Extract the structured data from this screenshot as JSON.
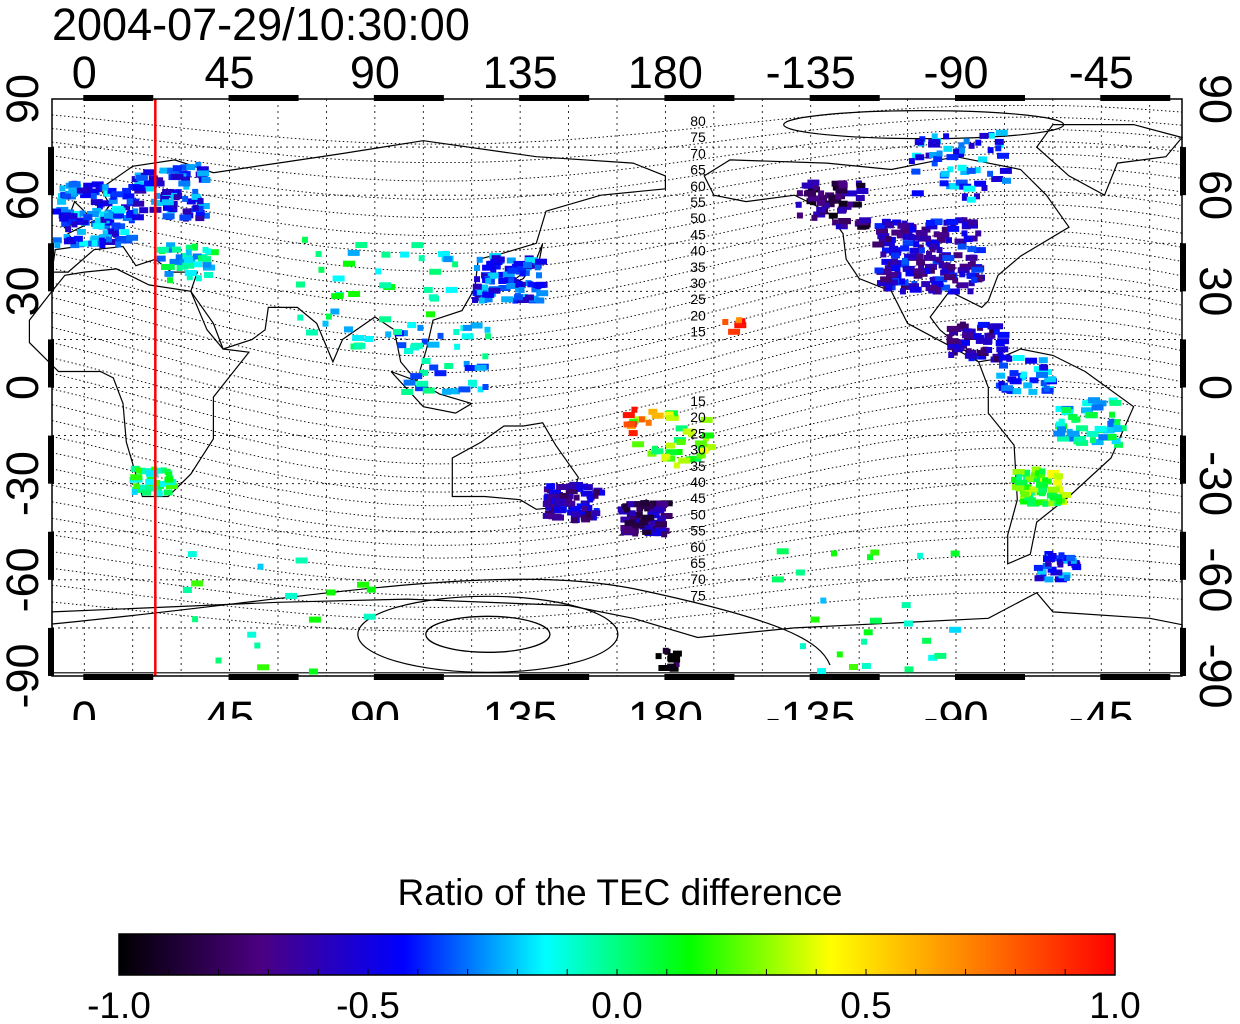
{
  "map": {
    "title": "2004-07-29/10:30:00",
    "lon_ticks": [
      {
        "label": "0",
        "lon": 0
      },
      {
        "label": "45",
        "lon": 45
      },
      {
        "label": "90",
        "lon": 90
      },
      {
        "label": "135",
        "lon": 135
      },
      {
        "label": "180",
        "lon": 180
      },
      {
        "label": "-135",
        "lon": 225
      },
      {
        "label": "-90",
        "lon": 270
      },
      {
        "label": "-45",
        "lon": 315
      }
    ],
    "lat_ticks": [
      {
        "label": "90",
        "lat": 90
      },
      {
        "label": "60",
        "lat": 60
      },
      {
        "label": "30",
        "lat": 30
      },
      {
        "label": "0",
        "lat": 0
      },
      {
        "label": "-30",
        "lat": -30
      },
      {
        "label": "-60",
        "lat": -60
      },
      {
        "label": "-90",
        "lat": -90
      }
    ],
    "lon_range": [
      -10,
      340
    ],
    "lat_range": [
      -90,
      90
    ],
    "grid_lon_step": 15,
    "grid_lat_step": 15,
    "terminator_lon": 22,
    "terminator_color": "#ff0000",
    "north_contour_labels": [
      "80",
      "75",
      "70",
      "65",
      "60",
      "55",
      "50",
      "45",
      "40",
      "35",
      "30",
      "25",
      "20",
      "15"
    ],
    "south_contour_labels": [
      "15",
      "20",
      "25",
      "30",
      "35",
      "40",
      "45",
      "50",
      "55",
      "60",
      "65",
      "70",
      "75"
    ]
  },
  "colorbar": {
    "title": "Ratio of the TEC difference",
    "min": -1.0,
    "max": 1.0,
    "tick_labels": [
      "-1.0",
      "-0.5",
      "0.0",
      "0.5",
      "1.0"
    ],
    "stops": [
      "#000000",
      "#4b0082",
      "#0000ff",
      "#00ffff",
      "#00ff00",
      "#ffff00",
      "#ff8000",
      "#ff0000"
    ]
  },
  "tec_clusters": [
    {
      "lon": 0,
      "lat": 55,
      "r": 14,
      "v": -0.35,
      "n": 140
    },
    {
      "lon": 25,
      "lat": 62,
      "r": 12,
      "v": -0.4,
      "n": 90
    },
    {
      "lon": 30,
      "lat": 40,
      "r": 8,
      "v": -0.1,
      "n": 40
    },
    {
      "lon": 20,
      "lat": -28,
      "r": 6,
      "v": 0.0,
      "n": 35
    },
    {
      "lon": 130,
      "lat": 35,
      "r": 10,
      "v": -0.4,
      "n": 90
    },
    {
      "lon": 110,
      "lat": 10,
      "r": 15,
      "v": -0.2,
      "n": 40
    },
    {
      "lon": 90,
      "lat": 30,
      "r": 25,
      "v": -0.05,
      "n": 45
    },
    {
      "lon": 150,
      "lat": -35,
      "r": 8,
      "v": -0.6,
      "n": 70
    },
    {
      "lon": 172,
      "lat": -40,
      "r": 7,
      "v": -0.7,
      "n": 60
    },
    {
      "lon": 180,
      "lat": -15,
      "r": 12,
      "v": 0.2,
      "n": 35
    },
    {
      "lon": 170,
      "lat": -10,
      "r": 6,
      "v": 0.8,
      "n": 10
    },
    {
      "lon": 230,
      "lat": 58,
      "r": 10,
      "v": -0.75,
      "n": 60
    },
    {
      "lon": 260,
      "lat": 42,
      "r": 16,
      "v": -0.55,
      "n": 180
    },
    {
      "lon": 270,
      "lat": 70,
      "r": 15,
      "v": -0.35,
      "n": 60
    },
    {
      "lon": 275,
      "lat": 15,
      "r": 8,
      "v": -0.6,
      "n": 60
    },
    {
      "lon": 290,
      "lat": 5,
      "r": 8,
      "v": -0.3,
      "n": 35
    },
    {
      "lon": 295,
      "lat": -30,
      "r": 8,
      "v": 0.2,
      "n": 70
    },
    {
      "lon": 300,
      "lat": -55,
      "r": 6,
      "v": -0.4,
      "n": 30
    },
    {
      "lon": 310,
      "lat": -10,
      "r": 10,
      "v": -0.1,
      "n": 50
    },
    {
      "lon": 200,
      "lat": 20,
      "r": 3,
      "v": 0.9,
      "n": 6
    },
    {
      "lon": 240,
      "lat": -70,
      "r": 30,
      "v": 0.0,
      "n": 25
    },
    {
      "lon": 60,
      "lat": -72,
      "r": 30,
      "v": 0.0,
      "n": 20
    },
    {
      "lon": 180,
      "lat": -84,
      "r": 4,
      "v": -0.95,
      "n": 12
    }
  ]
}
